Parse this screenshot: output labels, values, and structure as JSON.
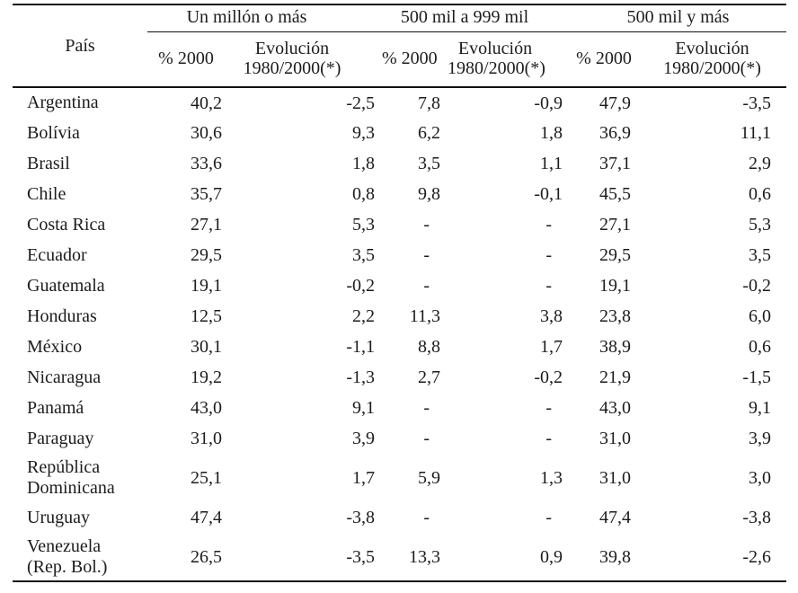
{
  "table": {
    "country_header": "País",
    "groups": [
      {
        "label": "Un millón o más"
      },
      {
        "label": "500 mil a 999 mil"
      },
      {
        "label": "500 mil y más"
      }
    ],
    "sub_headers": {
      "percent": "% 2000",
      "evolution_line1": "Evolución",
      "evolution_line2": "1980/2000(*)"
    },
    "rows": [
      {
        "country_lines": [
          "Argentina"
        ],
        "values": [
          "40,2",
          "-2,5",
          "7,8",
          "-0,9",
          "47,9",
          "-3,5"
        ]
      },
      {
        "country_lines": [
          "Bolívia"
        ],
        "values": [
          "30,6",
          "9,3",
          "6,2",
          "1,8",
          "36,9",
          "11,1"
        ]
      },
      {
        "country_lines": [
          "Brasil"
        ],
        "values": [
          "33,6",
          "1,8",
          "3,5",
          "1,1",
          "37,1",
          "2,9"
        ]
      },
      {
        "country_lines": [
          "Chile"
        ],
        "values": [
          "35,7",
          "0,8",
          "9,8",
          "-0,1",
          "45,5",
          "0,6"
        ]
      },
      {
        "country_lines": [
          "Costa Rica"
        ],
        "values": [
          "27,1",
          "5,3",
          "-",
          "-",
          "27,1",
          "5,3"
        ]
      },
      {
        "country_lines": [
          "Ecuador"
        ],
        "values": [
          "29,5",
          "3,5",
          "-",
          "-",
          "29,5",
          "3,5"
        ]
      },
      {
        "country_lines": [
          "Guatemala"
        ],
        "values": [
          "19,1",
          "-0,2",
          "-",
          "-",
          "19,1",
          "-0,2"
        ]
      },
      {
        "country_lines": [
          "Honduras"
        ],
        "values": [
          "12,5",
          "2,2",
          "11,3",
          "3,8",
          "23,8",
          "6,0"
        ]
      },
      {
        "country_lines": [
          "México"
        ],
        "values": [
          "30,1",
          "-1,1",
          "8,8",
          "1,7",
          "38,9",
          "0,6"
        ]
      },
      {
        "country_lines": [
          "Nicaragua"
        ],
        "values": [
          "19,2",
          "-1,3",
          "2,7",
          "-0,2",
          "21,9",
          "-1,5"
        ]
      },
      {
        "country_lines": [
          "Panamá"
        ],
        "values": [
          "43,0",
          "9,1",
          "-",
          "-",
          "43,0",
          "9,1"
        ]
      },
      {
        "country_lines": [
          "Paraguay"
        ],
        "values": [
          "31,0",
          "3,9",
          "-",
          "-",
          "31,0",
          "3,9"
        ]
      },
      {
        "country_lines": [
          "República",
          "Dominicana"
        ],
        "values": [
          "25,1",
          "1,7",
          "5,9",
          "1,3",
          "31,0",
          "3,0"
        ]
      },
      {
        "country_lines": [
          "Uruguay"
        ],
        "values": [
          "47,4",
          "-3,8",
          "-",
          "-",
          "47,4",
          "-3,8"
        ]
      },
      {
        "country_lines": [
          "Venezuela",
          "(Rep. Bol.)"
        ],
        "values": [
          "26,5",
          "-3,5",
          "13,3",
          "0,9",
          "39,8",
          "-2,6"
        ]
      }
    ]
  }
}
